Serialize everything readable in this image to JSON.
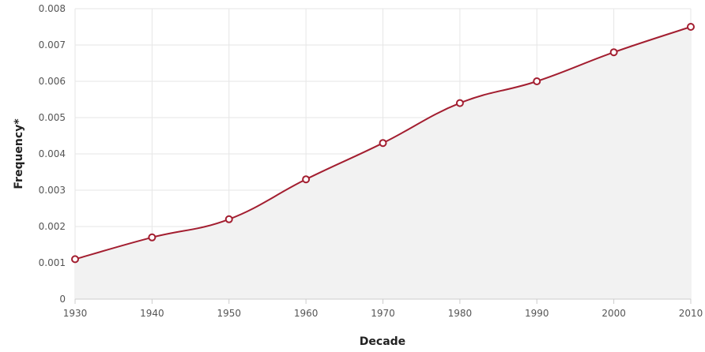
{
  "chart_data": {
    "type": "area",
    "x": [
      1930,
      1940,
      1950,
      1960,
      1970,
      1980,
      1990,
      2000,
      2010
    ],
    "series": [
      {
        "values": [
          0.0011,
          0.0017,
          0.0022,
          0.0033,
          0.0043,
          0.0054,
          0.006,
          0.0068,
          0.0075
        ]
      }
    ],
    "xlabel": "Decade",
    "ylabel": "Frequency*",
    "xlim": [
      1930,
      2010
    ],
    "ylim": [
      0,
      0.008
    ],
    "x_ticks": [
      "1930",
      "1940",
      "1950",
      "1960",
      "1970",
      "1980",
      "1990",
      "2000",
      "2010"
    ],
    "y_ticks": [
      "0",
      "0.001",
      "0.002",
      "0.003",
      "0.004",
      "0.005",
      "0.006",
      "0.007",
      "0.008"
    ],
    "grid": true,
    "line_color": "#a31e30",
    "fill_color": "#f2f2f2",
    "grid_color": "#e6e6e6"
  }
}
